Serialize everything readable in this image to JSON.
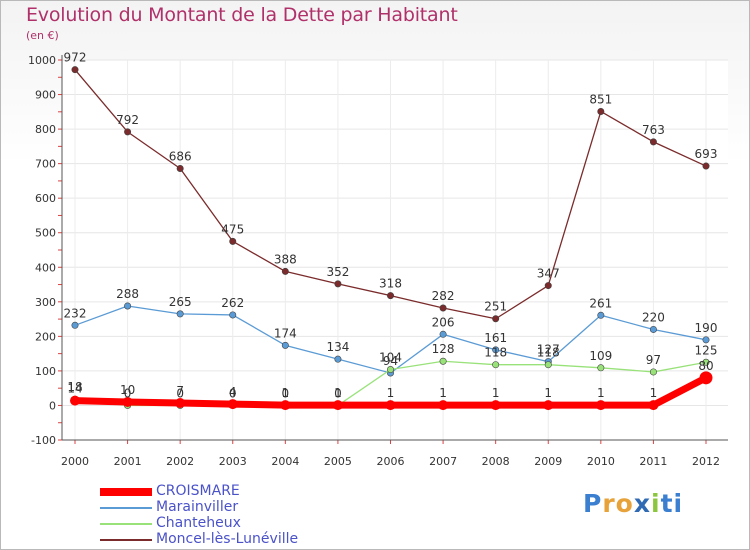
{
  "chart_data": {
    "type": "line",
    "title": "Evolution du Montant de la Dette par Habitant",
    "ylabel": "(en €)",
    "xlabel": "",
    "categories": [
      "2000",
      "2001",
      "2002",
      "2003",
      "2004",
      "2005",
      "2006",
      "2007",
      "2008",
      "2009",
      "2010",
      "2011",
      "2012"
    ],
    "ylim": [
      -100,
      1000
    ],
    "yticks": [
      -100,
      0,
      100,
      200,
      300,
      400,
      500,
      600,
      700,
      800,
      900,
      1000
    ],
    "series": [
      {
        "name": "CROISMARE",
        "color": "#ff0000",
        "values": [
          14,
          10,
          7,
          4,
          1,
          1,
          1,
          1,
          1,
          1,
          1,
          1,
          80
        ],
        "labels": [
          "14",
          "10",
          "7",
          "4",
          "1",
          "1",
          "1",
          "1",
          "1",
          "1",
          "1",
          "1",
          "80"
        ]
      },
      {
        "name": "Marainviller",
        "color": "#5b9bd5",
        "values": [
          232,
          288,
          265,
          262,
          174,
          134,
          94,
          206,
          161,
          127,
          261,
          220,
          190
        ],
        "labels": [
          "232",
          "288",
          "265",
          "262",
          "174",
          "134",
          "94",
          "206",
          "161",
          "127",
          "261",
          "220",
          "190"
        ]
      },
      {
        "name": "Chanteheux",
        "color": "#99e27a",
        "values": [
          18,
          0,
          0,
          0,
          0,
          0,
          104,
          128,
          118,
          118,
          109,
          97,
          125
        ],
        "labels": [
          "18",
          "0",
          "0",
          "0",
          "0",
          "0",
          "104",
          "128",
          "118",
          "118",
          "109",
          "97",
          "125"
        ]
      },
      {
        "name": "Moncel-lès-Lunéville",
        "color": "#7b2b2b",
        "values": [
          972,
          792,
          686,
          475,
          388,
          352,
          318,
          282,
          251,
          347,
          851,
          763,
          693
        ],
        "labels": [
          "972",
          "792",
          "686",
          "475",
          "388",
          "352",
          "318",
          "282",
          "251",
          "347",
          "851",
          "763",
          "693"
        ]
      }
    ]
  },
  "legend": [
    "CROISMARE",
    "Marainviller",
    "Chanteheux",
    "Moncel-lès-Lunéville"
  ],
  "logo": {
    "text": "Proxiti",
    "letters": [
      "P",
      "r",
      "o",
      "x",
      "i",
      "t",
      "i"
    ],
    "colors": [
      "#3a7fd0",
      "#e8a23a",
      "#e8a23a",
      "#2f6ab3",
      "#8cc63e",
      "#3a7fd0",
      "#3a7fd0"
    ]
  }
}
